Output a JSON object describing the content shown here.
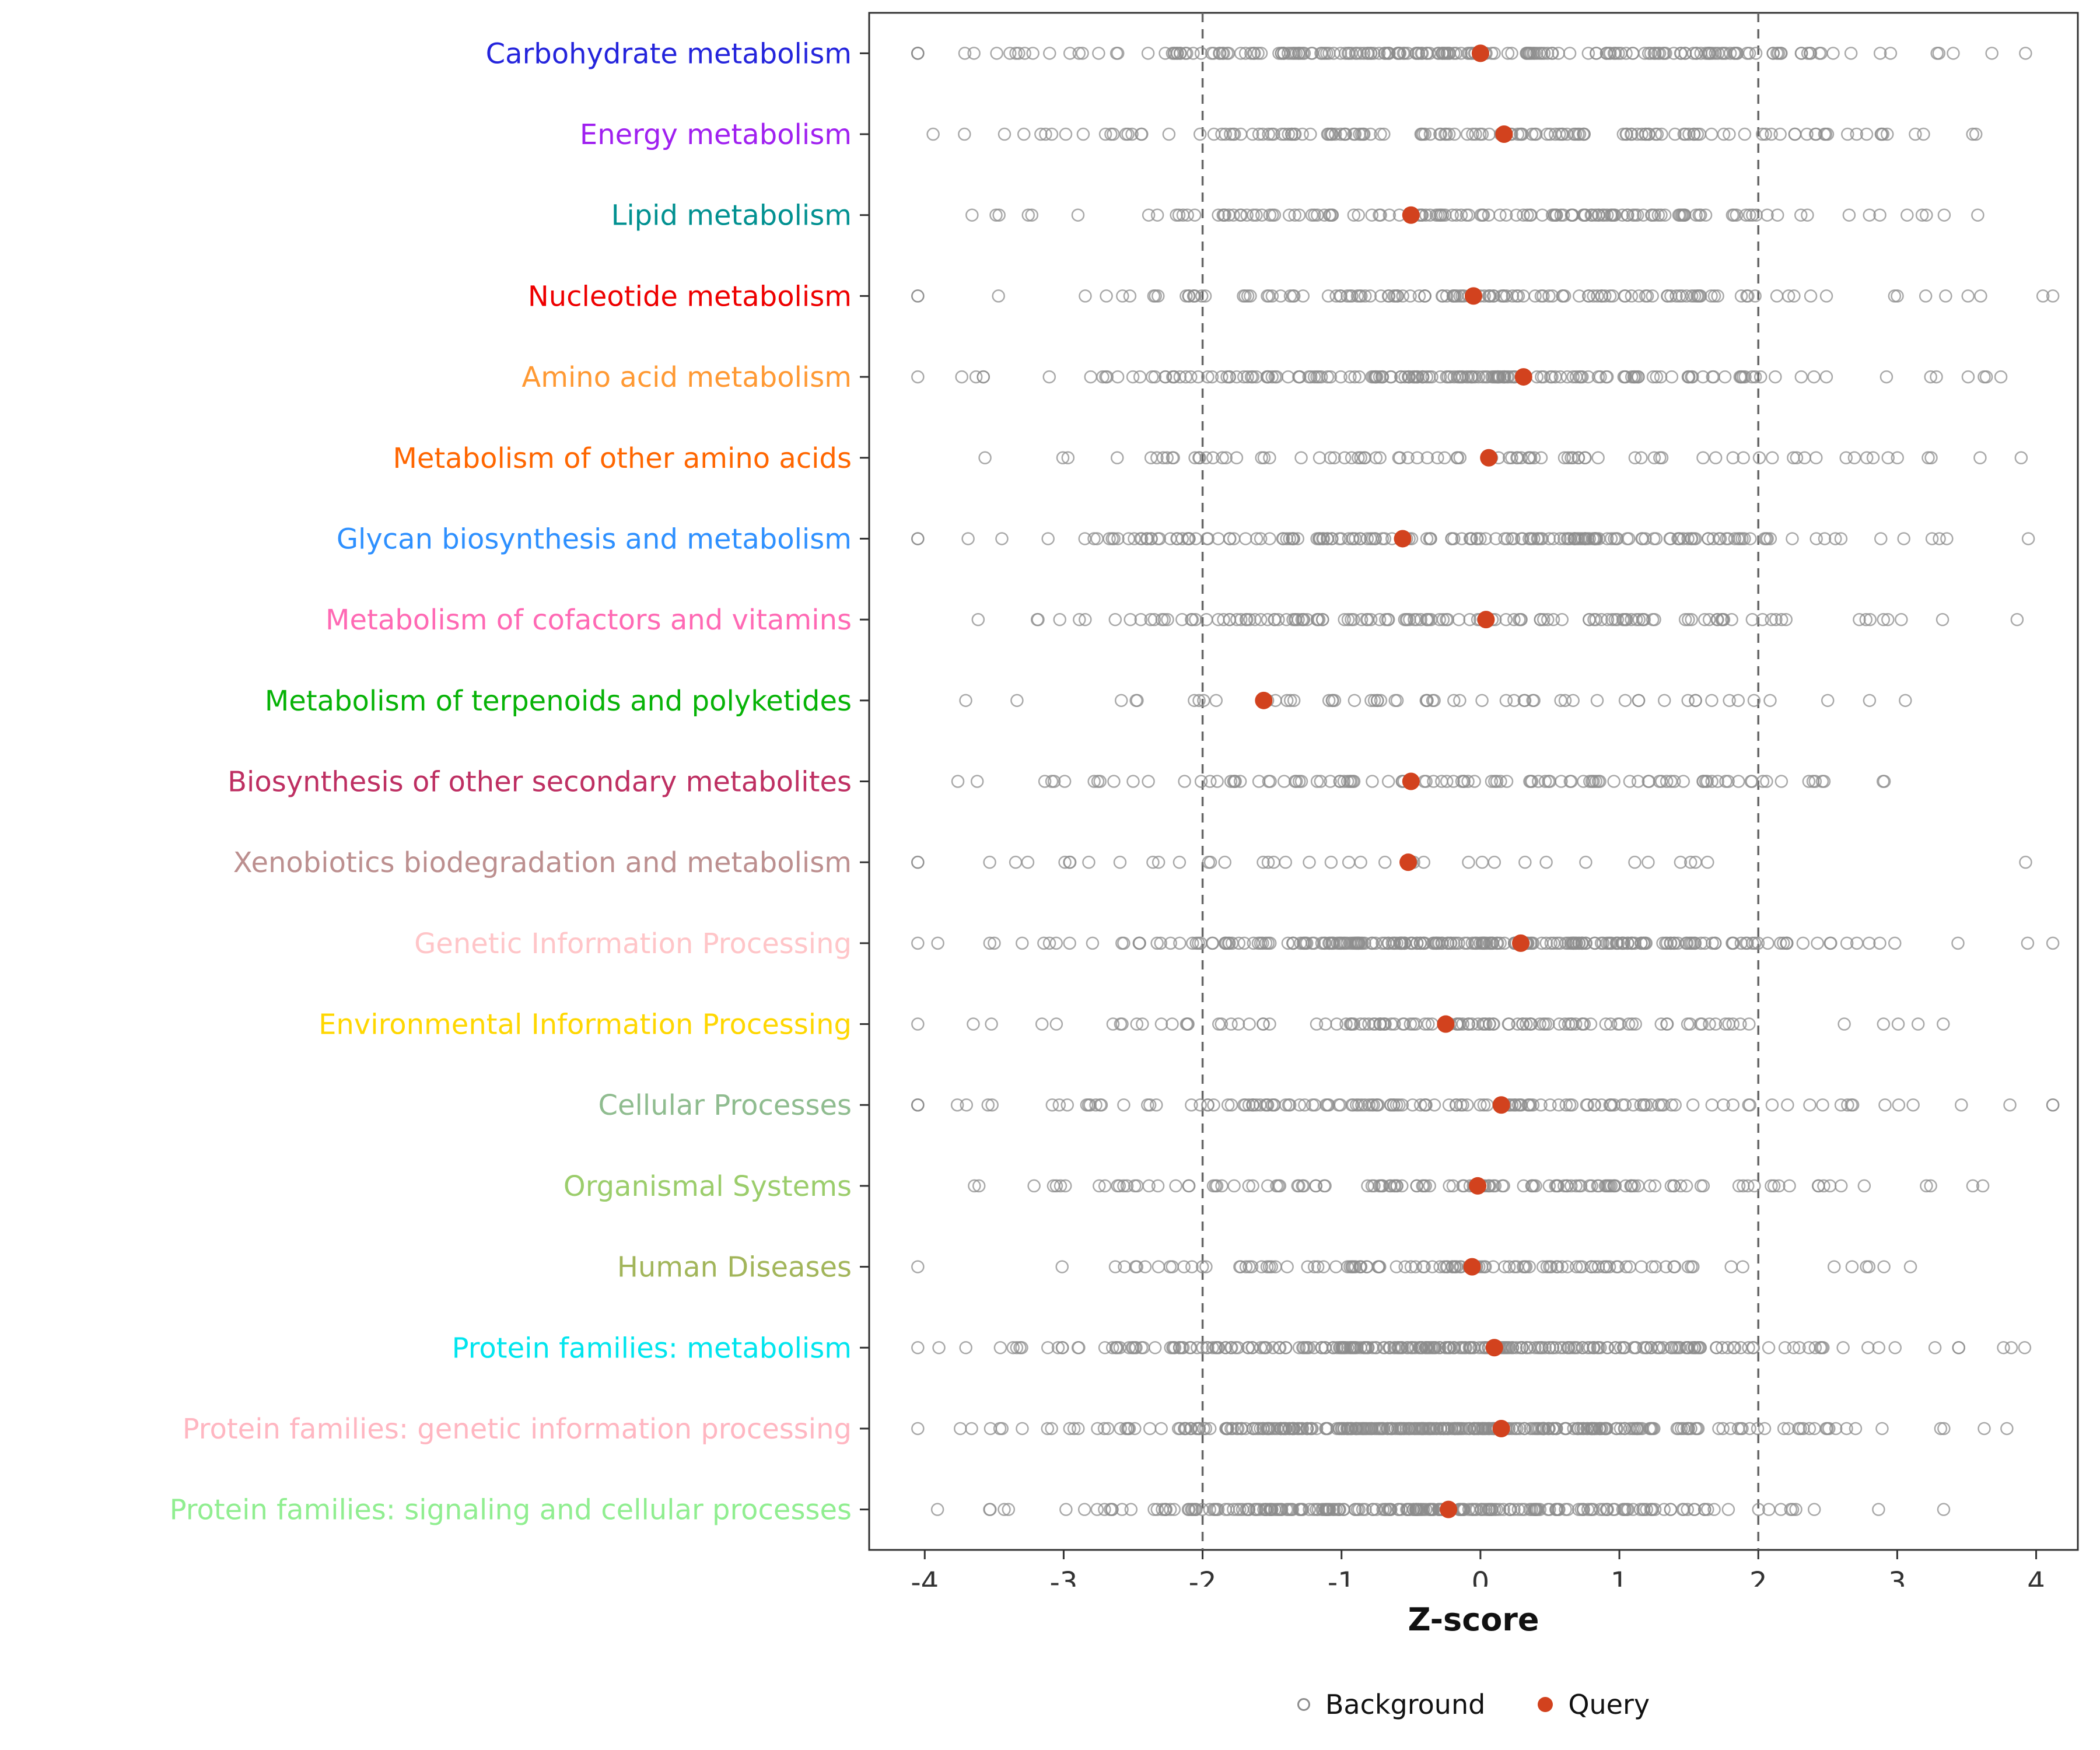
{
  "chart_data": {
    "type": "scatter",
    "subtype": "strip-plot",
    "title": "",
    "xlabel": "Z-score",
    "ylabel": "",
    "xlim": [
      -4.4,
      4.3
    ],
    "x_ticks": [
      -4,
      -3,
      -2,
      -1,
      0,
      1,
      2,
      3,
      4
    ],
    "grid": false,
    "reference_lines": [
      -2,
      2
    ],
    "legend": {
      "position": "bottom",
      "background_label": "Background",
      "query_label": "Query"
    },
    "colors": {
      "query": "#d2421e",
      "background_stroke": "#8c8c8c",
      "panel_border": "#333333",
      "reference_line": "#666666",
      "axis_text": "#333333"
    },
    "categories": [
      {
        "label": "Carbohydrate metabolism",
        "color": "#2424dc",
        "query_z": 0.0,
        "background": {
          "n": 230,
          "mean": -0.1,
          "sd": 1.5,
          "seed": 11
        }
      },
      {
        "label": "Energy metabolism",
        "color": "#a020f0",
        "query_z": 0.17,
        "background": {
          "n": 150,
          "mean": 0.0,
          "sd": 1.5,
          "seed": 12
        }
      },
      {
        "label": "Lipid metabolism",
        "color": "#029191",
        "query_z": -0.5,
        "background": {
          "n": 150,
          "mean": 0.0,
          "sd": 1.5,
          "seed": 13
        }
      },
      {
        "label": "Nucleotide metabolism",
        "color": "#ee0000",
        "query_z": -0.05,
        "background": {
          "n": 140,
          "mean": -0.1,
          "sd": 1.5,
          "seed": 14
        }
      },
      {
        "label": "Amino acid metabolism",
        "color": "#ff9933",
        "query_z": 0.31,
        "background": {
          "n": 190,
          "mean": -0.1,
          "sd": 1.5,
          "seed": 15
        }
      },
      {
        "label": "Metabolism of other amino acids",
        "color": "#ff6600",
        "query_z": 0.06,
        "background": {
          "n": 90,
          "mean": 0.0,
          "sd": 1.6,
          "seed": 16
        }
      },
      {
        "label": "Glycan biosynthesis and metabolism",
        "color": "#2e90ff",
        "query_z": -0.56,
        "background": {
          "n": 190,
          "mean": 0.0,
          "sd": 1.6,
          "seed": 17
        }
      },
      {
        "label": "Metabolism of cofactors and vitamins",
        "color": "#ff69b4",
        "query_z": 0.04,
        "background": {
          "n": 140,
          "mean": -0.2,
          "sd": 1.5,
          "seed": 18
        }
      },
      {
        "label": "Metabolism of terpenoids and polyketides",
        "color": "#07b307",
        "query_z": -1.56,
        "background": {
          "n": 60,
          "mean": -0.3,
          "sd": 1.3,
          "seed": 19
        }
      },
      {
        "label": "Biosynthesis of other secondary metabolites",
        "color": "#be2f62",
        "query_z": -0.5,
        "background": {
          "n": 110,
          "mean": -0.2,
          "sd": 1.5,
          "seed": 20
        }
      },
      {
        "label": "Xenobiotics biodegradation and metabolism",
        "color": "#bc8f8f",
        "query_z": -0.52,
        "background": {
          "n": 42,
          "mean": -0.5,
          "sd": 1.7,
          "seed": 21
        }
      },
      {
        "label": "Genetic Information Processing",
        "color": "#ffc5c8",
        "query_z": 0.29,
        "background": {
          "n": 260,
          "mean": 0.0,
          "sd": 1.4,
          "seed": 22
        }
      },
      {
        "label": "Environmental Information Processing",
        "color": "#ffd700",
        "query_z": -0.25,
        "background": {
          "n": 120,
          "mean": -0.3,
          "sd": 1.5,
          "seed": 23
        }
      },
      {
        "label": "Cellular Processes",
        "color": "#8fbc8f",
        "query_z": 0.15,
        "background": {
          "n": 150,
          "mean": -0.5,
          "sd": 1.7,
          "seed": 24
        }
      },
      {
        "label": "Organismal Systems",
        "color": "#9bcd6b",
        "query_z": -0.02,
        "background": {
          "n": 140,
          "mean": -0.3,
          "sd": 1.5,
          "seed": 25
        }
      },
      {
        "label": "Human Diseases",
        "color": "#a2b55a",
        "query_z": -0.06,
        "background": {
          "n": 120,
          "mean": -0.4,
          "sd": 1.4,
          "seed": 26
        }
      },
      {
        "label": "Protein families: metabolism",
        "color": "#00e5ee",
        "query_z": 0.1,
        "background": {
          "n": 300,
          "mean": -0.3,
          "sd": 1.4,
          "seed": 27
        }
      },
      {
        "label": "Protein families: genetic information processing",
        "color": "#ffb6c1",
        "query_z": 0.15,
        "background": {
          "n": 340,
          "mean": -0.2,
          "sd": 1.3,
          "seed": 28
        }
      },
      {
        "label": "Protein families: signaling and cellular processes",
        "color": "#90ee90",
        "query_z": -0.23,
        "background": {
          "n": 260,
          "mean": -0.5,
          "sd": 1.3,
          "seed": 29
        }
      }
    ]
  }
}
